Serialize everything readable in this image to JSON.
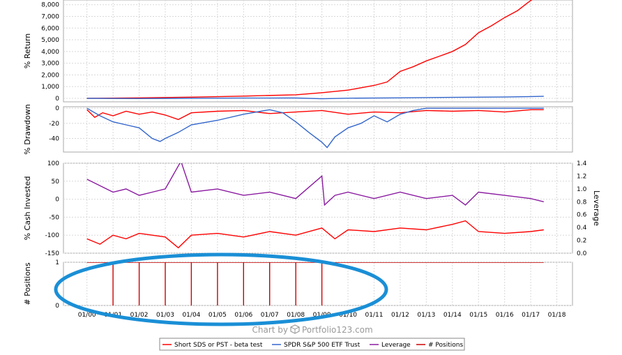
{
  "chart_data": [
    {
      "panel": "returns",
      "type": "line",
      "ylabel": "% Return",
      "ylim": [
        -300,
        8400
      ],
      "yticks": [
        0,
        1000,
        2000,
        3000,
        4000,
        5000,
        6000,
        7000,
        8000
      ],
      "ytick_labels": [
        "0",
        "1,000",
        "2,000",
        "3,000",
        "4,000",
        "5,000",
        "6,000",
        "7,000",
        "8,000"
      ],
      "series": [
        {
          "name": "Short SDS or PST - beta test",
          "color": "#ff0000",
          "x": [
            2000.0,
            2002.0,
            2004.0,
            2006.0,
            2008.0,
            2009.0,
            2010.0,
            2011.0,
            2011.5,
            2012.0,
            2012.5,
            2013.0,
            2013.5,
            2014.0,
            2014.5,
            2015.0,
            2015.5,
            2016.0,
            2016.5,
            2016.9,
            2017.1
          ],
          "y": [
            0,
            40,
            100,
            190,
            300,
            480,
            700,
            1100,
            1400,
            2300,
            2700,
            3200,
            3600,
            4000,
            4600,
            5600,
            6200,
            6900,
            7500,
            8200,
            8500
          ]
        },
        {
          "name": "SPDR S&P 500 ETF Trust",
          "color": "#3366cc",
          "x": [
            2000.0,
            2002.0,
            2004.0,
            2006.0,
            2008.0,
            2009.0,
            2010.0,
            2012.0,
            2014.0,
            2016.0,
            2017.5
          ],
          "y": [
            0,
            -20,
            5,
            20,
            30,
            -40,
            10,
            40,
            80,
            110,
            170
          ]
        }
      ]
    },
    {
      "panel": "drawdown",
      "type": "line",
      "ylabel": "% Drawdown",
      "ylim": [
        -58,
        2
      ],
      "yticks": [
        0,
        -20,
        -40
      ],
      "ytick_labels": [
        "0",
        "-20",
        "-40"
      ],
      "series": [
        {
          "name": "Short SDS or PST - beta test",
          "color": "#ff0000",
          "x": [
            2000.0,
            2000.3,
            2000.6,
            2001.0,
            2001.5,
            2002.0,
            2002.5,
            2003.0,
            2003.5,
            2004.0,
            2005.0,
            2006.0,
            2007.0,
            2008.0,
            2009.0,
            2010.0,
            2011.0,
            2012.0,
            2013.0,
            2014.0,
            2015.0,
            2016.0,
            2017.0,
            2017.5
          ],
          "y": [
            -2,
            -12,
            -6,
            -10,
            -4,
            -8,
            -5,
            -9,
            -15,
            -6,
            -4,
            -3,
            -7,
            -5,
            -3,
            -8,
            -5,
            -6,
            -3,
            -4,
            -3,
            -5,
            -2,
            -2
          ]
        },
        {
          "name": "SPDR S&P 500 ETF Trust",
          "color": "#3366cc",
          "x": [
            2000.0,
            2000.5,
            2001.0,
            2001.5,
            2002.0,
            2002.5,
            2002.8,
            2003.0,
            2003.5,
            2004.0,
            2005.0,
            2006.0,
            2007.0,
            2007.5,
            2008.0,
            2008.5,
            2009.0,
            2009.2,
            2009.5,
            2010.0,
            2010.5,
            2011.0,
            2011.5,
            2012.0,
            2012.5,
            2013.0,
            2017.5
          ],
          "y": [
            0,
            -10,
            -18,
            -22,
            -26,
            -40,
            -44,
            -40,
            -32,
            -22,
            -16,
            -8,
            -2,
            -6,
            -18,
            -32,
            -45,
            -52,
            -38,
            -26,
            -20,
            -10,
            -18,
            -8,
            -3,
            0,
            0
          ]
        }
      ]
    },
    {
      "panel": "cash_leverage",
      "type": "line",
      "ylabel": "% Cash Invested",
      "y2label": "Leverage",
      "ylim": [
        -150,
        100
      ],
      "yticks": [
        100,
        50,
        0,
        -50,
        -100,
        -150
      ],
      "ytick_labels": [
        "100",
        "50",
        "0",
        "-50",
        "-100",
        "-150"
      ],
      "y2lim": [
        0.0,
        1.4
      ],
      "y2ticks": [
        0.0,
        0.2,
        0.4,
        0.6,
        0.8,
        1.0,
        1.2,
        1.4
      ],
      "y2tick_labels": [
        "0.0",
        "0.2",
        "0.4",
        "0.6",
        "0.8",
        "1.0",
        "1.2",
        "1.4"
      ],
      "series": [
        {
          "name": "Short SDS or PST - beta test",
          "color": "#ff0000",
          "x": [
            2000.0,
            2000.5,
            2001.0,
            2001.5,
            2002.0,
            2003.0,
            2003.5,
            2004.0,
            2005.0,
            2006.0,
            2007.0,
            2008.0,
            2009.0,
            2009.5,
            2010.0,
            2011.0,
            2012.0,
            2013.0,
            2014.0,
            2014.5,
            2015.0,
            2016.0,
            2017.0,
            2017.5
          ],
          "y": [
            -110,
            -125,
            -100,
            -110,
            -95,
            -105,
            -135,
            -100,
            -95,
            -105,
            -90,
            -100,
            -80,
            -110,
            -85,
            -90,
            -80,
            -85,
            -70,
            -60,
            -90,
            -95,
            -90,
            -85
          ]
        },
        {
          "name": "Leverage",
          "color": "#8a1aa0",
          "axis": "y2",
          "x": [
            2000.0,
            2000.5,
            2001.0,
            2001.5,
            2002.0,
            2002.5,
            2003.0,
            2003.6,
            2004.0,
            2005.0,
            2006.0,
            2007.0,
            2008.0,
            2009.0,
            2009.1,
            2009.5,
            2010.0,
            2011.0,
            2012.0,
            2013.0,
            2014.0,
            2014.5,
            2015.0,
            2016.0,
            2017.0,
            2017.5
          ],
          "y": [
            1.15,
            1.05,
            0.95,
            1.0,
            0.9,
            0.95,
            1.0,
            1.43,
            0.95,
            1.0,
            0.9,
            0.95,
            0.85,
            1.2,
            0.75,
            0.9,
            0.95,
            0.85,
            0.95,
            0.85,
            0.9,
            0.75,
            0.95,
            0.9,
            0.85,
            0.8
          ]
        }
      ]
    },
    {
      "panel": "positions",
      "type": "line",
      "ylabel": "# Positions",
      "ylim": [
        0,
        1
      ],
      "yticks": [
        0,
        1
      ],
      "ytick_labels": [
        "0",
        "1"
      ],
      "series": [
        {
          "name": "# Positions",
          "color": "#cc0000",
          "x": [
            2000.0,
            2001.0,
            2001.0,
            2001.0,
            2002.0,
            2002.0,
            2002.0,
            2003.0,
            2003.0,
            2003.0,
            2004.0,
            2004.0,
            2004.0,
            2005.0,
            2005.0,
            2005.0,
            2006.0,
            2006.0,
            2006.0,
            2007.0,
            2007.0,
            2007.0,
            2008.0,
            2008.0,
            2008.0,
            2009.0,
            2009.0,
            2009.0,
            2017.5
          ],
          "y": [
            1,
            1,
            0,
            1,
            1,
            0,
            1,
            1,
            0,
            1,
            1,
            0,
            1,
            1,
            0,
            1,
            1,
            0,
            1,
            1,
            0,
            1,
            1,
            0,
            1,
            1,
            0,
            1,
            1
          ]
        }
      ]
    }
  ],
  "x_axis": {
    "xlim": [
      1999.1,
      2018.6
    ],
    "ticks": [
      2000,
      2001,
      2002,
      2003,
      2004,
      2005,
      2006,
      2007,
      2008,
      2009,
      2010,
      2011,
      2012,
      2013,
      2014,
      2015,
      2016,
      2017,
      2018
    ],
    "tick_labels": [
      "01/00",
      "01/01",
      "01/02",
      "01/03",
      "01/04",
      "01/05",
      "01/06",
      "01/07",
      "01/08",
      "01/09",
      "01/10",
      "01/11",
      "01/12",
      "01/13",
      "01/14",
      "01/15",
      "01/16",
      "01/17",
      "01/18"
    ]
  },
  "annotation": {
    "shape": "ellipse",
    "color": "#1a8fd6"
  },
  "credit": "Chart by",
  "credit_brand": "Portfolio123.com",
  "legend": [
    {
      "label": "Short SDS or PST - beta test",
      "color": "#ff0000"
    },
    {
      "label": "SPDR S&P 500 ETF Trust",
      "color": "#3366cc"
    },
    {
      "label": "Leverage",
      "color": "#8a1aa0"
    },
    {
      "label": "# Positions",
      "color": "#cc0000"
    }
  ]
}
